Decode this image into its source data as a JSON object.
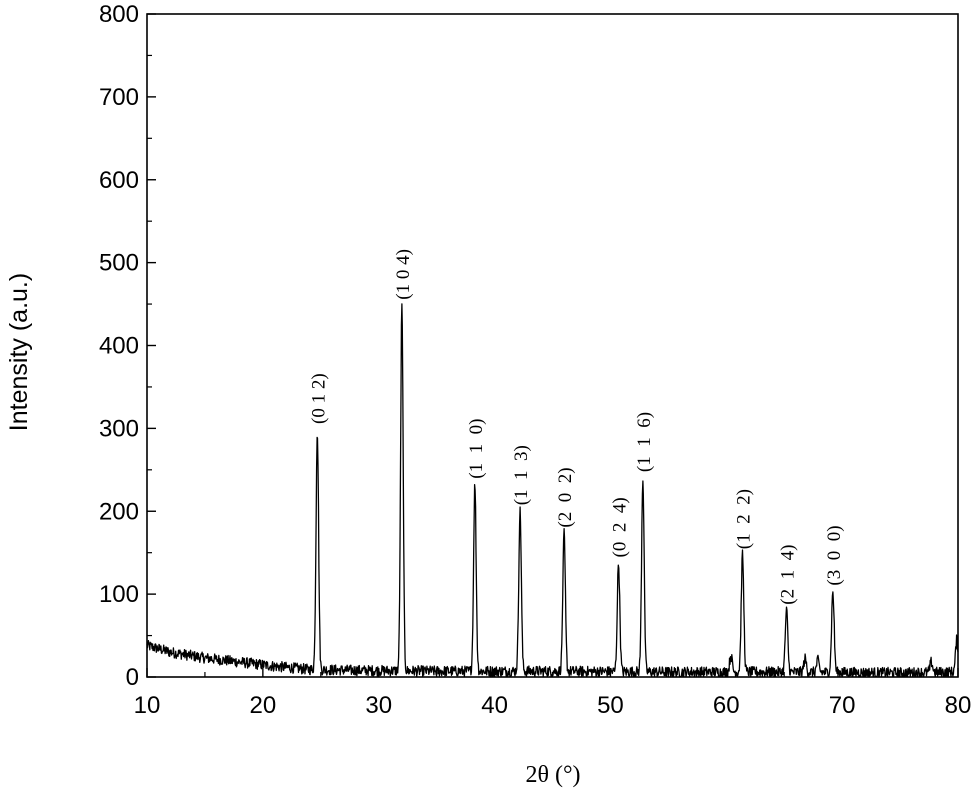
{
  "chart_data": {
    "type": "line",
    "title": "",
    "xlabel": "2θ (°)",
    "ylabel": "Intensity (a.u.)",
    "xlim": [
      10,
      80
    ],
    "ylim": [
      0,
      800
    ],
    "x_ticks": [
      "10",
      "20",
      "30",
      "40",
      "50",
      "60",
      "70",
      "80"
    ],
    "y_ticks": [
      "0",
      "100",
      "200",
      "300",
      "400",
      "500",
      "600",
      "700",
      "800"
    ],
    "grid": false,
    "legend": "none",
    "line_color": "#000000",
    "peaks": [
      {
        "label": "(0 1 2)",
        "x": 24.7,
        "y": 298
      },
      {
        "label": "(1 0 4)",
        "x": 32.0,
        "y": 448
      },
      {
        "label": "(1  1  0)",
        "x": 38.3,
        "y": 232
      },
      {
        "label": "(1  1  3)",
        "x": 42.2,
        "y": 200
      },
      {
        "label": "(2  0  2)",
        "x": 46.0,
        "y": 173
      },
      {
        "label": "(0  2  4)",
        "x": 50.7,
        "y": 137
      },
      {
        "label": "(1  1  6)",
        "x": 52.8,
        "y": 240
      },
      {
        "label": "(1  2  2)",
        "x": 61.4,
        "y": 147
      },
      {
        "label": "(2  1  4)",
        "x": 65.2,
        "y": 80
      },
      {
        "label": "(3  0  0)",
        "x": 69.2,
        "y": 103
      }
    ],
    "minor_peaks": [
      {
        "x": 60.4,
        "y": 26
      },
      {
        "x": 66.8,
        "y": 22
      },
      {
        "x": 67.9,
        "y": 20
      },
      {
        "x": 77.7,
        "y": 18
      },
      {
        "x": 79.9,
        "y": 45
      }
    ],
    "background": [
      {
        "x": 10,
        "y": 38
      },
      {
        "x": 12,
        "y": 30
      },
      {
        "x": 15,
        "y": 23
      },
      {
        "x": 18,
        "y": 18
      },
      {
        "x": 21,
        "y": 13
      },
      {
        "x": 24,
        "y": 9
      },
      {
        "x": 28,
        "y": 8
      },
      {
        "x": 35,
        "y": 7
      },
      {
        "x": 45,
        "y": 7
      },
      {
        "x": 55,
        "y": 6
      },
      {
        "x": 65,
        "y": 6
      },
      {
        "x": 75,
        "y": 5
      },
      {
        "x": 80,
        "y": 6
      }
    ]
  }
}
